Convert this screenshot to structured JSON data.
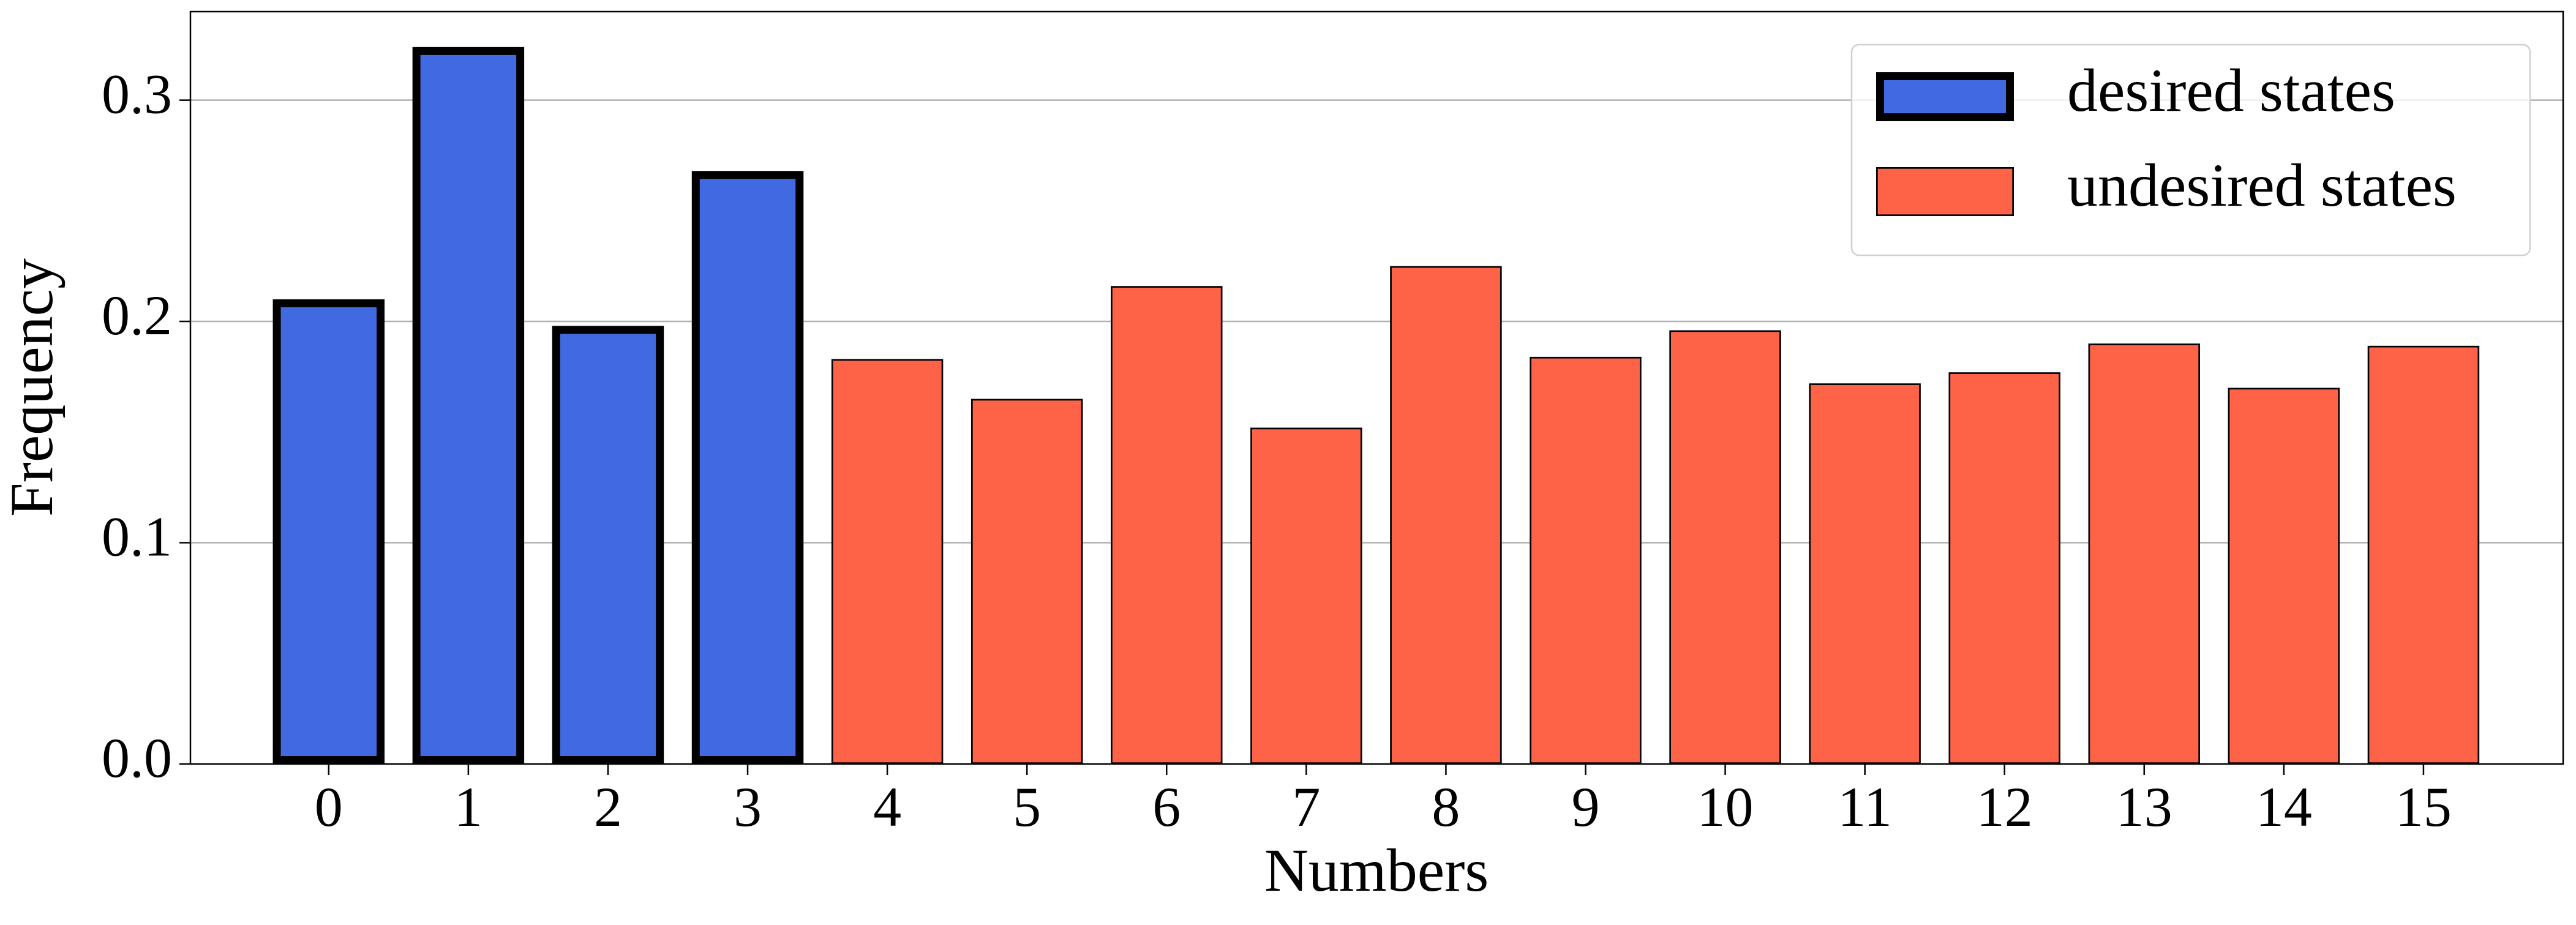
{
  "chart_data": {
    "type": "bar",
    "x_label": "Numbers",
    "y_label": "Frequency",
    "categories": [
      "0",
      "1",
      "2",
      "3",
      "4",
      "5",
      "6",
      "7",
      "8",
      "9",
      "10",
      "11",
      "12",
      "13",
      "14",
      "15"
    ],
    "series": [
      {
        "name": "desired states",
        "color": "#4169e1",
        "edgecolor": "#000000",
        "values": [
          0.21,
          0.324,
          0.198,
          0.268,
          null,
          null,
          null,
          null,
          null,
          null,
          null,
          null,
          null,
          null,
          null,
          null
        ]
      },
      {
        "name": "undesired states",
        "color": "#ff6347",
        "edgecolor": "#000000",
        "values": [
          null,
          null,
          null,
          null,
          0.183,
          0.165,
          0.216,
          0.152,
          0.225,
          0.184,
          0.196,
          0.172,
          0.177,
          0.19,
          0.17,
          0.189
        ]
      }
    ],
    "ylim": [
      0,
      0.34
    ],
    "yticks": [
      {
        "value": 0,
        "label": "0.0"
      },
      0.1,
      0.2,
      0.3
    ],
    "grid": true,
    "legend": "upper right"
  }
}
